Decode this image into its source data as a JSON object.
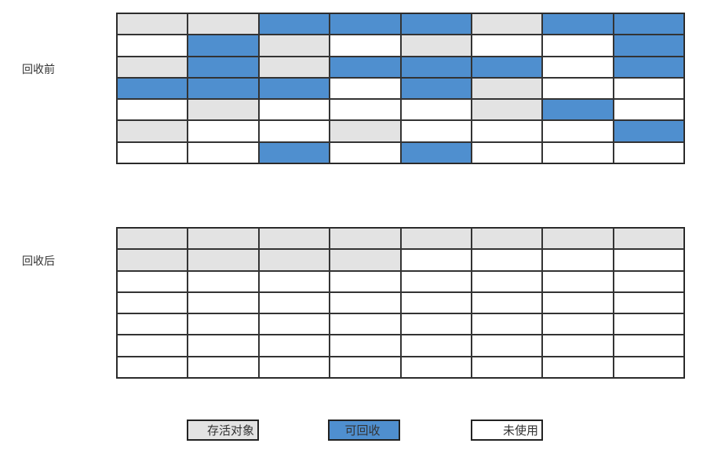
{
  "before": {
    "label": "回收前",
    "rows": [
      "GGBBBGBB",
      "WBGWGWWB",
      "GBGBBBWB",
      "BBBWBGWW",
      "WGWWWGBW",
      "GWWGWWWB",
      "WWBWBWWW"
    ]
  },
  "after": {
    "label": "回收后",
    "rows": [
      "GGGGGGGG",
      "GGGGWWWW",
      "WWWWWWWW",
      "WWWWWWWW",
      "WWWWWWWW",
      "WWWWWWWW",
      "WWWWWWWW"
    ]
  },
  "legend": [
    {
      "key": "G",
      "label": "存活对象",
      "color": "#e3e3e3"
    },
    {
      "key": "B",
      "label": "可回收",
      "color": "#4f8fcf"
    },
    {
      "key": "W",
      "label": "未使用",
      "color": "#ffffff"
    }
  ]
}
